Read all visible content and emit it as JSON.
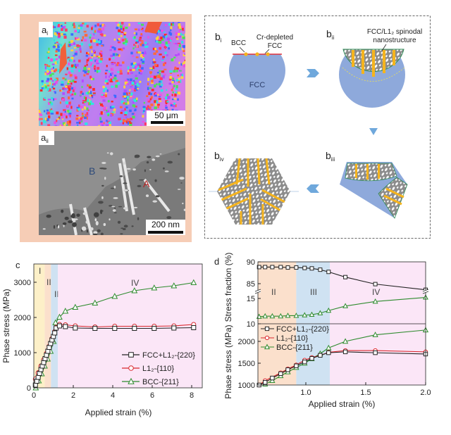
{
  "panel_a": {
    "label_i": "a",
    "sub_i": "i",
    "scale_i": "50 μm",
    "label_ii": "a",
    "sub_ii": "ii",
    "scale_ii": "200 nm",
    "marker_b": "B",
    "marker_a": "A",
    "background_color": "#f6cdb6"
  },
  "panel_b": {
    "label_i": "b",
    "sub_i": "i",
    "label_ii": "b",
    "sub_ii": "ii",
    "label_iii": "b",
    "sub_iii": "iii",
    "label_iv": "b",
    "sub_iv": "iv",
    "bcc": "BCC",
    "cr_depleted_1": "Cr-depleted",
    "cr_depleted_2": "FCC",
    "fcc": "FCC",
    "spinodal_1": "FCC/L1₂ spinodal",
    "spinodal_2": "nanostructure",
    "colors": {
      "fcc": "#8ea9db",
      "spinodal": "#8c8c8c",
      "bcc_lath": "#f5b41e",
      "arrow": "#6fa8dc"
    }
  },
  "chart_data": [
    {
      "panel": "c",
      "type": "line",
      "xlabel": "Applied strain (%)",
      "ylabel": "Phase stress (MPa)",
      "xlim": [
        0,
        8.5
      ],
      "ylim": [
        0,
        3500
      ],
      "xticks": [
        "0",
        "2",
        "4",
        "6",
        "8"
      ],
      "yticks": [
        "0",
        "1000",
        "2000",
        "3000"
      ],
      "regions": [
        {
          "label": "I",
          "from": 0,
          "to": 0.55,
          "color": "#fdf0c8"
        },
        {
          "label": "II",
          "from": 0.55,
          "to": 0.87,
          "color": "#fbe0cc"
        },
        {
          "label": "III",
          "from": 0.87,
          "to": 1.22,
          "color": "#cfe2f2"
        },
        {
          "label": "IV",
          "from": 1.22,
          "to": 8.5,
          "color": "#fbe6f7"
        }
      ],
      "legend_position": "bottom-right",
      "series": [
        {
          "name": "FCC+L1₂-{220}",
          "marker": "square",
          "color": "#222222",
          "x": [
            0.08,
            0.15,
            0.22,
            0.29,
            0.36,
            0.43,
            0.5,
            0.57,
            0.64,
            0.71,
            0.78,
            0.85,
            0.92,
            0.99,
            1.06,
            1.13,
            1.3,
            1.6,
            2.1,
            3.1,
            4.1,
            5.1,
            6.1,
            7.1,
            8.1
          ],
          "y": [
            80,
            190,
            300,
            410,
            520,
            620,
            720,
            830,
            930,
            1040,
            1150,
            1260,
            1360,
            1460,
            1560,
            1700,
            1760,
            1740,
            1700,
            1690,
            1690,
            1690,
            1690,
            1700,
            1710
          ]
        },
        {
          "name": "L1₂-{110}",
          "marker": "circle",
          "color": "#d9262c",
          "x": [
            0.08,
            0.22,
            0.36,
            0.5,
            0.64,
            0.78,
            0.92,
            1.06,
            1.13,
            1.3,
            1.6,
            2.1,
            3.1,
            4.1,
            5.1,
            6.1,
            7.1,
            8.1
          ],
          "y": [
            250,
            430,
            620,
            800,
            980,
            1180,
            1400,
            1600,
            1720,
            1800,
            1790,
            1760,
            1730,
            1750,
            1750,
            1750,
            1760,
            1800
          ]
        },
        {
          "name": "BCC-{211}",
          "marker": "triangle",
          "color": "#2e8b2e",
          "x": [
            0.1,
            0.25,
            0.4,
            0.55,
            0.7,
            0.85,
            1.0,
            1.1,
            1.3,
            1.6,
            2.1,
            3.1,
            4.1,
            5.1,
            6.1,
            7.1,
            8.1
          ],
          "y": [
            0,
            200,
            400,
            620,
            820,
            1040,
            1320,
            1850,
            2010,
            2180,
            2290,
            2410,
            2600,
            2760,
            2840,
            2900,
            2990
          ]
        }
      ]
    },
    {
      "panel": "d",
      "type": "line",
      "xlabel": "Applied strain (%)",
      "xlim": [
        0.6,
        2.0
      ],
      "xticks": [
        "1.0",
        "1.5",
        "2.0"
      ],
      "top_ylabel": "Stress fraction (%)",
      "top_yticks": [
        "90",
        "85",
        "15",
        "10"
      ],
      "top_ylim_upper": [
        83.5,
        90
      ],
      "top_ylim_lower": [
        10,
        15.8
      ],
      "bottom_ylabel": "Phase stress (MPa)",
      "bottom_yticks": [
        "2000",
        "1500",
        "1000"
      ],
      "bottom_ylim": [
        1000,
        2300
      ],
      "regions": [
        {
          "label": "II",
          "from": 0.6,
          "to": 0.92,
          "color": "#fbe0cc"
        },
        {
          "label": "III",
          "from": 0.92,
          "to": 1.2,
          "color": "#cfe2f2"
        },
        {
          "label": "IV",
          "from": 1.2,
          "to": 2.0,
          "color": "#fbe6f7"
        }
      ],
      "legend_position": "top-left of lower panel",
      "top_series": [
        {
          "marker": "square",
          "color": "#222222",
          "x": [
            0.61,
            0.66,
            0.72,
            0.79,
            0.85,
            0.92,
            0.99,
            1.05,
            1.12,
            1.19,
            1.33,
            1.58,
            2.0
          ],
          "y": [
            88.8,
            88.8,
            88.8,
            88.8,
            88.7,
            88.7,
            88.6,
            88.5,
            88.2,
            87.7,
            86.5,
            84.9,
            83.6
          ]
        },
        {
          "marker": "triangle",
          "color": "#2e8b2e",
          "x": [
            0.61,
            0.66,
            0.72,
            0.79,
            0.85,
            0.92,
            0.99,
            1.05,
            1.12,
            1.19,
            1.33,
            1.58,
            2.0
          ],
          "y": [
            11.4,
            11.5,
            11.5,
            11.5,
            11.6,
            11.6,
            11.7,
            11.8,
            12.1,
            12.6,
            13.5,
            14.4,
            15.2
          ]
        }
      ],
      "series": [
        {
          "name": "FCC+L1₂-{220}",
          "marker": "square",
          "color": "#222222",
          "x": [
            0.61,
            0.66,
            0.72,
            0.79,
            0.85,
            0.92,
            0.99,
            1.05,
            1.12,
            1.19,
            1.33,
            1.58,
            2.0
          ],
          "y": [
            1000,
            1060,
            1160,
            1260,
            1350,
            1440,
            1530,
            1610,
            1680,
            1740,
            1760,
            1740,
            1710
          ]
        },
        {
          "name": "L1₂-{110}",
          "marker": "circle",
          "color": "#d9262c",
          "x": [
            0.61,
            0.66,
            0.79,
            0.85,
            0.92,
            0.99,
            1.05,
            1.12,
            1.19,
            1.33,
            1.58,
            2.0
          ],
          "y": [
            1000,
            1100,
            1280,
            1370,
            1460,
            1570,
            1630,
            1680,
            1750,
            1790,
            1790,
            1760
          ]
        },
        {
          "name": "BCC-{211}",
          "marker": "triangle",
          "color": "#2e8b2e",
          "x": [
            0.66,
            0.72,
            0.79,
            0.85,
            0.92,
            0.99,
            1.05,
            1.12,
            1.19,
            1.33,
            1.58,
            2.0
          ],
          "y": [
            1020,
            1100,
            1210,
            1300,
            1400,
            1500,
            1600,
            1720,
            1850,
            2000,
            2150,
            2260
          ]
        }
      ]
    }
  ]
}
